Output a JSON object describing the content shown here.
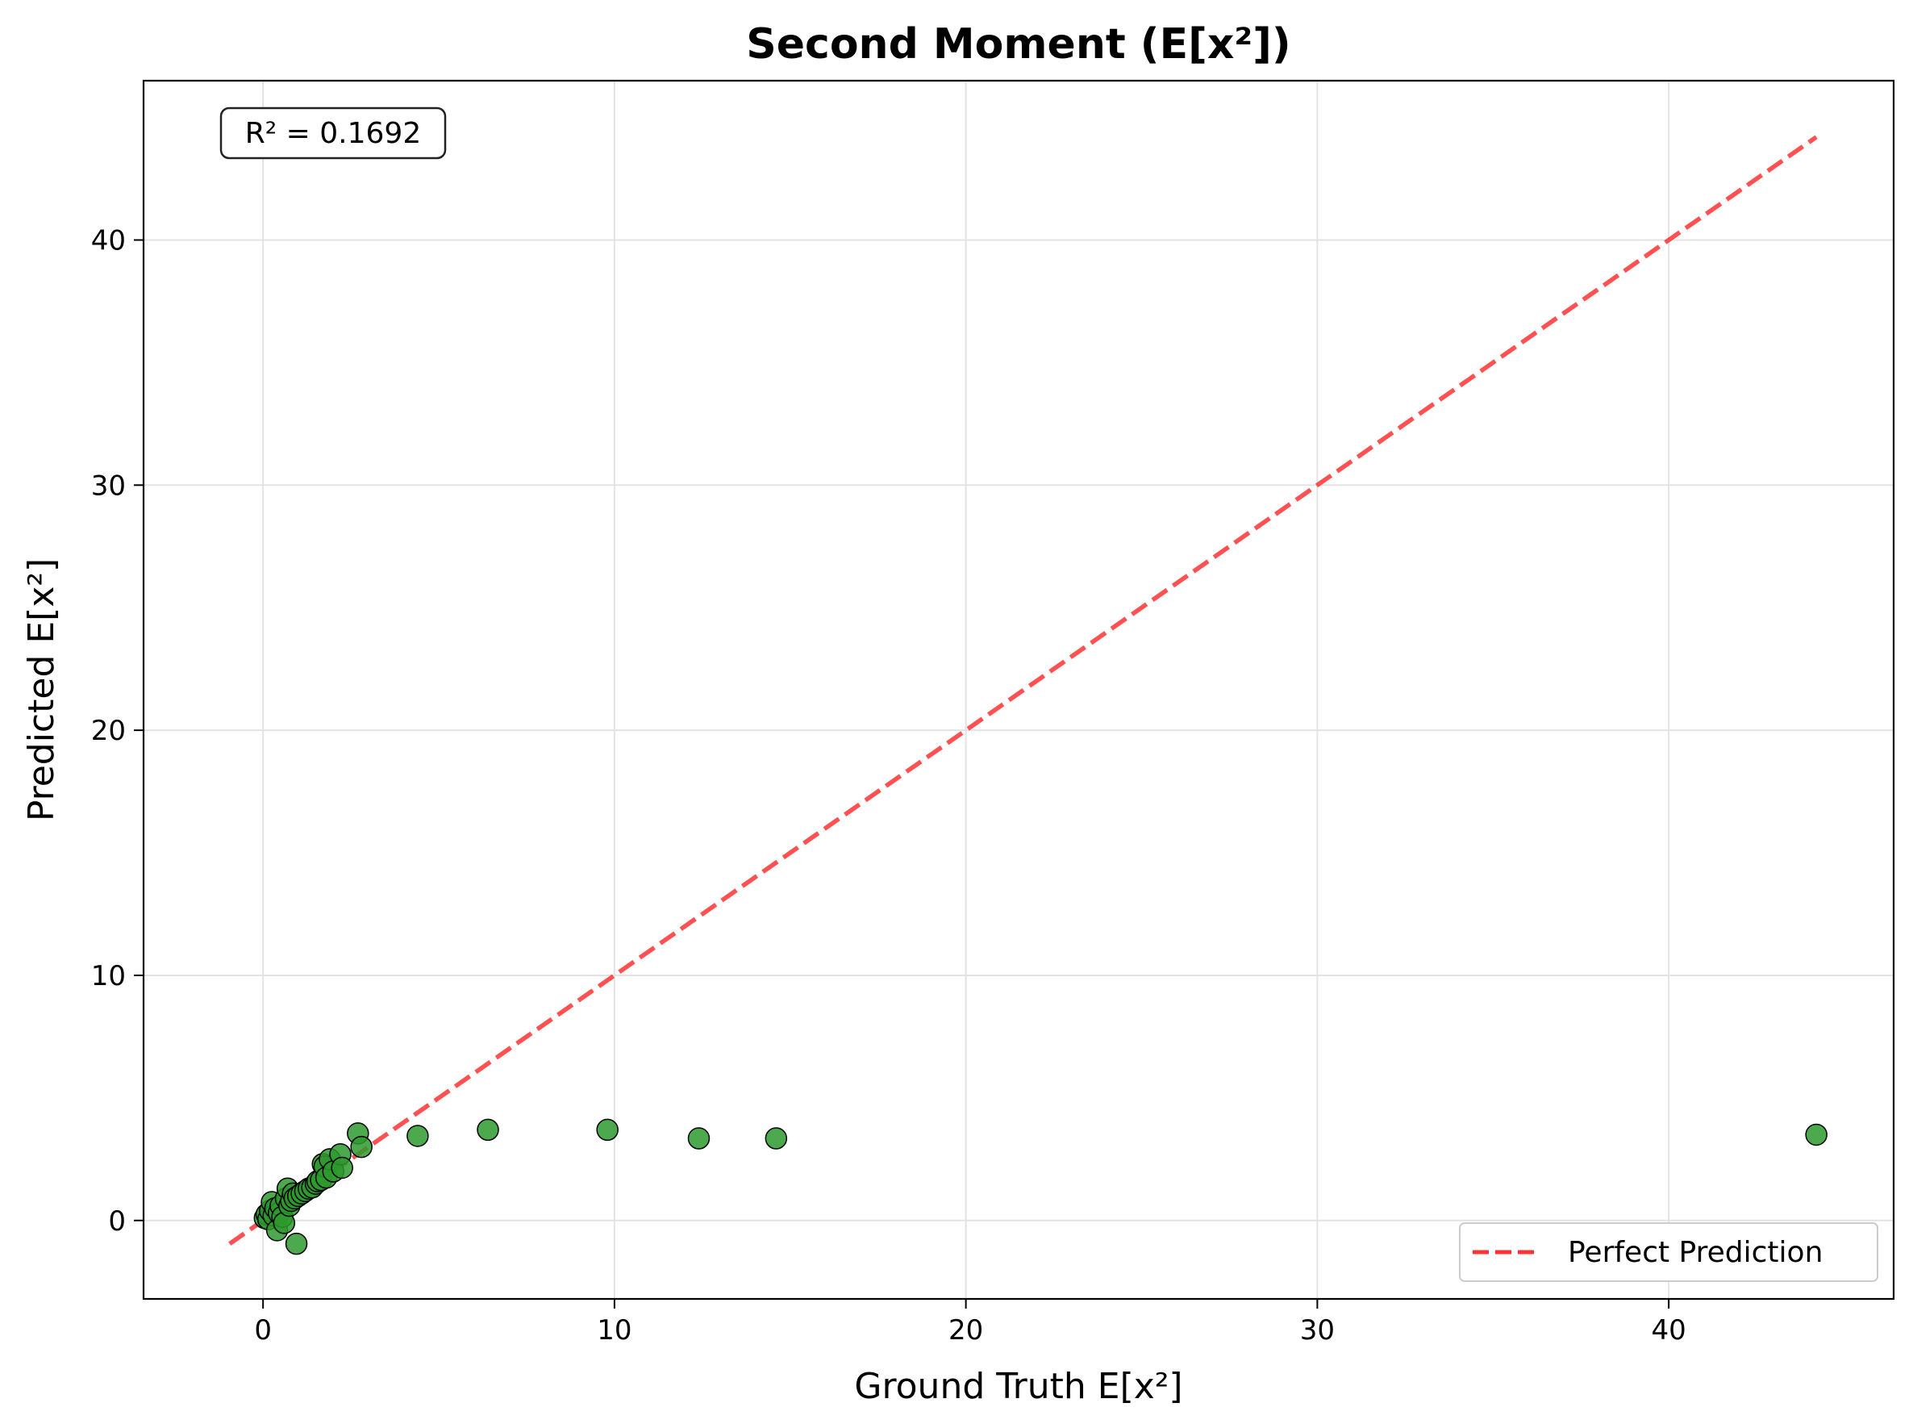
{
  "chart_data": {
    "type": "scatter",
    "title": "Second Moment (E[x²])",
    "xlabel": "Ground Truth E[x²]",
    "ylabel": "Predicted E[x²]",
    "xlim": [
      -3.4,
      46.4
    ],
    "ylim": [
      -3.2,
      46.5
    ],
    "xticks": [
      0,
      10,
      20,
      30,
      40
    ],
    "yticks": [
      0,
      10,
      20,
      30,
      40
    ],
    "grid": true,
    "legend": {
      "placement": "lower-right",
      "entries": [
        "Perfect Prediction"
      ]
    },
    "annotation": "R² = 0.1692",
    "colors": {
      "points": "#2e9a2e",
      "point_edge": "#000000",
      "reference_line": "#ff3333"
    },
    "series": [
      {
        "kind": "scatter",
        "points": [
          [
            0.05,
            0.1
          ],
          [
            0.1,
            0.25
          ],
          [
            0.15,
            0.05
          ],
          [
            0.2,
            0.4
          ],
          [
            0.25,
            0.75
          ],
          [
            0.3,
            0.2
          ],
          [
            0.35,
            0.5
          ],
          [
            0.4,
            -0.4
          ],
          [
            0.45,
            0.3
          ],
          [
            0.5,
            0.6
          ],
          [
            0.55,
            0.15
          ],
          [
            0.6,
            -0.1
          ],
          [
            0.65,
            0.9
          ],
          [
            0.7,
            1.3
          ],
          [
            0.75,
            0.6
          ],
          [
            0.8,
            0.8
          ],
          [
            0.85,
            1.1
          ],
          [
            0.9,
            0.9
          ],
          [
            0.95,
            -0.95
          ],
          [
            1.0,
            1.0
          ],
          [
            1.1,
            1.1
          ],
          [
            1.2,
            1.2
          ],
          [
            1.3,
            1.3
          ],
          [
            1.4,
            1.35
          ],
          [
            1.5,
            1.5
          ],
          [
            1.55,
            1.6
          ],
          [
            1.65,
            1.65
          ],
          [
            1.7,
            2.3
          ],
          [
            1.75,
            2.2
          ],
          [
            1.8,
            1.75
          ],
          [
            1.9,
            2.5
          ],
          [
            2.0,
            2.0
          ],
          [
            2.2,
            2.7
          ],
          [
            2.25,
            2.15
          ],
          [
            2.7,
            3.55
          ],
          [
            2.8,
            3.0
          ],
          [
            4.4,
            3.45
          ],
          [
            6.4,
            3.7
          ],
          [
            9.8,
            3.7
          ],
          [
            12.4,
            3.35
          ],
          [
            14.6,
            3.35
          ],
          [
            44.2,
            3.5
          ]
        ]
      },
      {
        "kind": "line",
        "name": "Perfect Prediction",
        "x": [
          -0.95,
          44.2
        ],
        "y": [
          -0.95,
          44.2
        ]
      }
    ]
  }
}
